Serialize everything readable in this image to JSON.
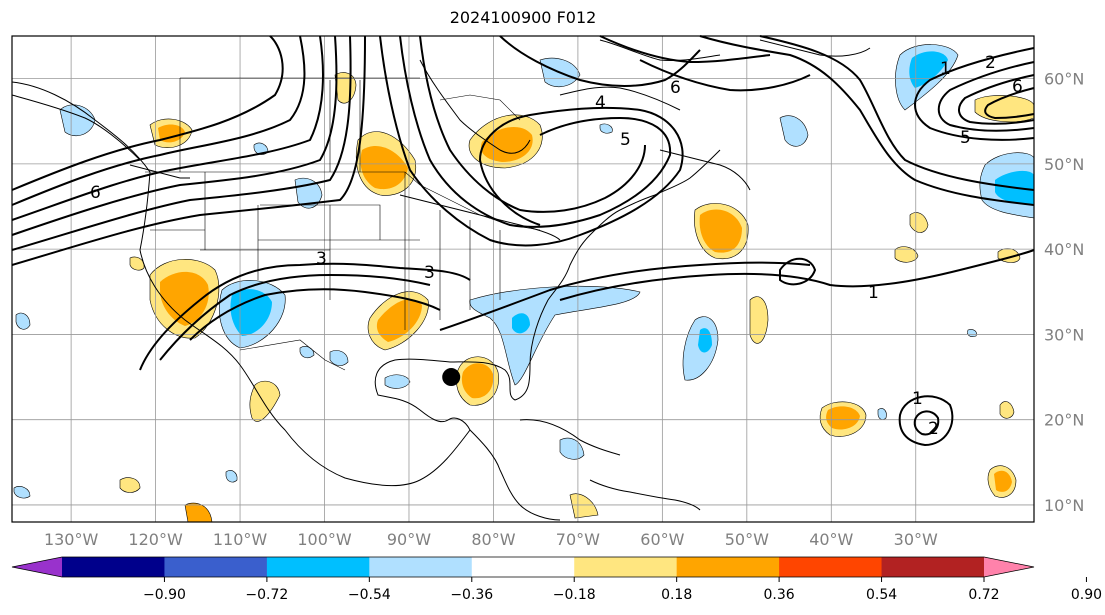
{
  "title": "2024100900 F012",
  "map": {
    "lon_range": [
      -137,
      -16
    ],
    "lat_range": [
      8,
      65
    ],
    "lat_labels": [
      "10°N",
      "20°N",
      "30°N",
      "40°N",
      "50°N",
      "60°N"
    ],
    "lat_values": [
      10,
      20,
      30,
      40,
      50,
      60
    ],
    "lon_labels": [
      "130°W",
      "120°W",
      "110°W",
      "100°W",
      "90°W",
      "80°W",
      "70°W",
      "60°W",
      "50°W",
      "40°W",
      "30°W"
    ],
    "lon_values": [
      -130,
      -120,
      -110,
      -100,
      -90,
      -80,
      -70,
      -60,
      -50,
      -40,
      -30
    ],
    "grid": true,
    "storm_marker": {
      "label": "storm-center",
      "lon": -85,
      "lat": 25
    }
  },
  "contour_labels": [
    "1",
    "2",
    "3",
    "4",
    "5",
    "6"
  ],
  "colorbar": {
    "ticks": [
      "−0.90",
      "−0.72",
      "−0.54",
      "−0.36",
      "−0.18",
      "0.18",
      "0.36",
      "0.54",
      "0.72",
      "0.90"
    ],
    "colors": [
      "#9932cc",
      "#00008b",
      "#3a5fcd",
      "#00bfff",
      "#b0e0ff",
      "#ffffff",
      "#ffe680",
      "#ffa500",
      "#ff4500",
      "#b22222",
      "#ff82ab"
    ]
  }
}
